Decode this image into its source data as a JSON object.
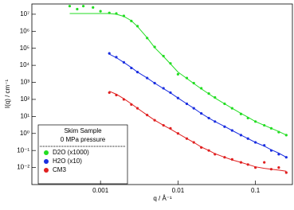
{
  "chart_data": {
    "type": "scatter",
    "x_label": "q / Å⁻¹",
    "y_label": "I(q) / cm⁻¹",
    "legend_title": [
      "Skim Sample",
      "0 MPa pressure"
    ],
    "log_x": true,
    "log_y": true,
    "xlim": [
      0.00013,
      0.3
    ],
    "ylim": [
      0.001,
      40000000
    ],
    "xticks": [
      0.001,
      0.01,
      0.1
    ],
    "yticks": [
      {
        "value": 0.01,
        "label": "10⁻²"
      },
      {
        "value": 0.1,
        "label": "10⁻¹"
      },
      {
        "value": 1,
        "label": "10⁰"
      },
      {
        "value": 10,
        "label": "10¹"
      },
      {
        "value": 100,
        "label": "10²"
      },
      {
        "value": 1000,
        "label": "10³"
      },
      {
        "value": 10000,
        "label": "10⁴"
      },
      {
        "value": 100000,
        "label": "10⁵"
      },
      {
        "value": 1000000,
        "label": "10⁶"
      },
      {
        "value": 10000000,
        "label": "10⁷"
      }
    ],
    "series": [
      {
        "name": "D2O (x1000)",
        "color": "#22dd22",
        "x": [
          0.0004,
          0.0005,
          0.0006,
          0.0008,
          0.001,
          0.0013,
          0.0016,
          0.002,
          0.0025,
          0.003,
          0.004,
          0.005,
          0.0065,
          0.008,
          0.01,
          0.013,
          0.016,
          0.02,
          0.025,
          0.03,
          0.04,
          0.05,
          0.065,
          0.08,
          0.1,
          0.13,
          0.16,
          0.2,
          0.25
        ],
        "values": [
          30000000,
          20000000,
          30000000,
          25000000,
          15000000,
          12000000,
          11000000,
          8000000,
          4000000,
          2000000,
          400000,
          120000,
          35000,
          13000,
          3000,
          1800,
          900,
          450,
          220,
          130,
          55,
          30,
          14,
          8,
          5,
          3,
          2,
          1.2,
          0.8
        ],
        "fit": [
          11000000,
          11000000,
          11000000,
          11000000,
          11000000,
          11000000,
          10000000,
          7500000,
          4200000,
          1900000,
          420000,
          110000,
          33000,
          12000,
          4000,
          1700,
          850,
          420,
          210,
          120,
          55,
          30,
          15,
          9,
          5,
          3,
          2,
          1.3,
          0.8
        ]
      },
      {
        "name": "H2O (x10)",
        "color": "#1a2ee0",
        "x": [
          0.0013,
          0.0016,
          0.002,
          0.0025,
          0.003,
          0.004,
          0.005,
          0.0065,
          0.008,
          0.01,
          0.013,
          0.016,
          0.02,
          0.025,
          0.03,
          0.04,
          0.05,
          0.065,
          0.08,
          0.1,
          0.13,
          0.16,
          0.2,
          0.25
        ],
        "values": [
          50000,
          30000,
          15000,
          7000,
          4000,
          1800,
          900,
          450,
          250,
          120,
          55,
          30,
          15,
          8,
          5,
          2.5,
          1.5,
          0.8,
          0.5,
          0.3,
          0.2,
          0.1,
          0.06,
          0.04
        ],
        "fit": [
          45000,
          28000,
          15000,
          7500,
          4000,
          1800,
          900,
          430,
          240,
          120,
          55,
          30,
          15,
          8,
          5,
          2.6,
          1.5,
          0.8,
          0.5,
          0.3,
          0.18,
          0.11,
          0.07,
          0.04
        ]
      },
      {
        "name": "CM3",
        "color": "#e02020",
        "x": [
          0.0013,
          0.0016,
          0.002,
          0.0025,
          0.003,
          0.004,
          0.005,
          0.0065,
          0.008,
          0.01,
          0.013,
          0.016,
          0.02,
          0.025,
          0.03,
          0.04,
          0.05,
          0.065,
          0.08,
          0.1,
          0.13,
          0.16,
          0.2,
          0.25
        ],
        "values": [
          250,
          180,
          100,
          50,
          30,
          12,
          6,
          3,
          2,
          1,
          0.5,
          0.3,
          0.15,
          0.1,
          0.06,
          0.04,
          0.03,
          0.02,
          0.015,
          0.01,
          0.02,
          0.008,
          0.01,
          0.005
        ],
        "fit": [
          300,
          200,
          110,
          55,
          30,
          12,
          6,
          3,
          1.8,
          1,
          0.5,
          0.3,
          0.16,
          0.1,
          0.065,
          0.04,
          0.028,
          0.02,
          0.015,
          0.011,
          0.009,
          0.008,
          0.007,
          0.006
        ]
      }
    ]
  }
}
